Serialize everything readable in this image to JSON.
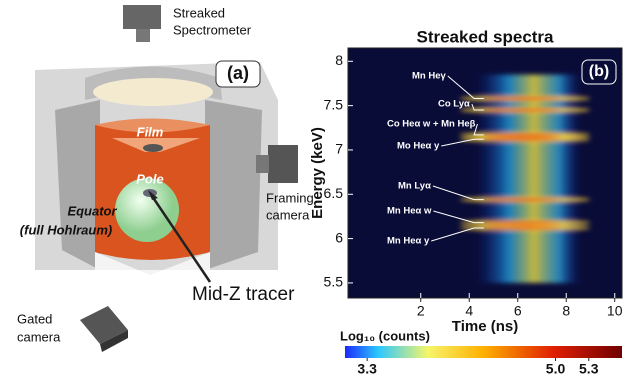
{
  "diagram": {
    "panel_label": "(a)",
    "spectrometer": [
      "Streaked",
      "Spectrometer"
    ],
    "film": "Film",
    "pole": "Pole",
    "equator": [
      "Equator",
      "(full Hohlraum)"
    ],
    "framing_camera": [
      "Framing",
      "camera"
    ],
    "gated_camera": [
      "Gated",
      "camera"
    ],
    "tracer": "Mid-Z tracer"
  },
  "chart_data": {
    "type": "heatmap",
    "title": "Streaked spectra",
    "panel_label": "(b)",
    "x_label": "Time (ns)",
    "y_label": "Energy (keV)",
    "xlim": [
      -1,
      10.3
    ],
    "xticks": [
      2,
      4,
      6,
      8,
      10
    ],
    "ylim": [
      5.33,
      8.15
    ],
    "yticks": [
      5.5,
      6.0,
      6.5,
      7.0,
      7.5,
      8.0
    ],
    "annotations": [
      {
        "label": "Mn Heγ",
        "y": 7.58
      },
      {
        "label": "Co Lyα",
        "y": 7.45
      },
      {
        "label": "Co Heα w + Mn Heβ",
        "y": 7.17
      },
      {
        "label": "Mo Heα y",
        "y": 7.12
      },
      {
        "label": "Mn Lyα",
        "y": 6.44
      },
      {
        "label": "Mn Heα w",
        "y": 6.18
      },
      {
        "label": "Mn Heα y",
        "y": 6.12
      }
    ],
    "colorbar": {
      "label": "Log₁₀ (counts)",
      "lim": [
        3.1,
        5.6
      ],
      "ticks": [
        3.3,
        {
          "value": 5.0,
          "label": "5.0"
        },
        5.3
      ]
    }
  }
}
